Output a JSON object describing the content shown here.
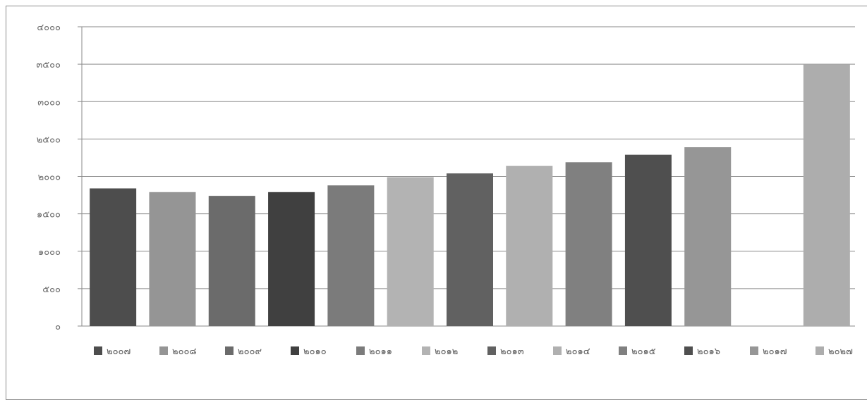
{
  "chart_data": {
    "type": "bar",
    "title": "",
    "xlabel": "",
    "ylabel": "",
    "ylim": [
      0,
      4000
    ],
    "y_ticks": [
      "๐",
      "๕๐๐",
      "๑๐๐๐",
      "๑๕๐๐",
      "๒๐๐๐",
      "๒๕๐๐",
      "๓๐๐๐",
      "๓๕๐๐",
      "๔๐๐๐"
    ],
    "y_tick_values": [
      0,
      500,
      1000,
      1500,
      2000,
      2500,
      3000,
      3500,
      4000
    ],
    "grid": true,
    "legend_position": "bottom",
    "series": [
      {
        "name": "๒๐๐๗",
        "value": 1840,
        "color": "#4d4d4d"
      },
      {
        "name": "๒๐๐๘",
        "value": 1790,
        "color": "#959595"
      },
      {
        "name": "๒๐๐๙",
        "value": 1740,
        "color": "#6b6b6b"
      },
      {
        "name": "๒๐๑๐",
        "value": 1790,
        "color": "#404040"
      },
      {
        "name": "๒๐๑๑",
        "value": 1880,
        "color": "#7b7b7b"
      },
      {
        "name": "๒๐๑๒",
        "value": 1990,
        "color": "#b3b3b3"
      },
      {
        "name": "๒๐๑๓",
        "value": 2040,
        "color": "#616161"
      },
      {
        "name": "๒๐๑๔",
        "value": 2140,
        "color": "#b0b0b0"
      },
      {
        "name": "๒๐๑๕",
        "value": 2190,
        "color": "#808080"
      },
      {
        "name": "๒๐๑๖",
        "value": 2290,
        "color": "#4f4f4f"
      },
      {
        "name": "๒๐๑๗",
        "value": 2390,
        "color": "#969696"
      },
      {
        "name": "",
        "value": null,
        "color": "#ffffff"
      },
      {
        "name": "๒๐๒๗",
        "value": 3500,
        "color": "#adadad"
      }
    ]
  }
}
